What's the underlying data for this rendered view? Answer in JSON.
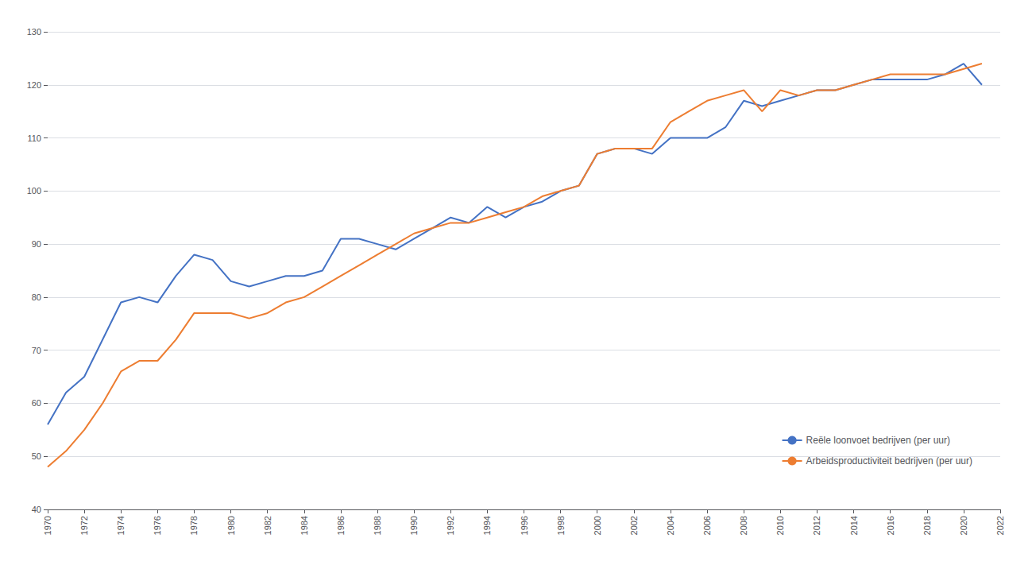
{
  "chart_data": {
    "type": "line",
    "x": [
      1970,
      1971,
      1972,
      1973,
      1974,
      1975,
      1976,
      1977,
      1978,
      1979,
      1980,
      1981,
      1982,
      1983,
      1984,
      1985,
      1986,
      1987,
      1988,
      1989,
      1990,
      1991,
      1992,
      1993,
      1994,
      1995,
      1996,
      1997,
      1998,
      1999,
      2000,
      2001,
      2002,
      2003,
      2004,
      2005,
      2006,
      2007,
      2008,
      2009,
      2010,
      2011,
      2012,
      2013,
      2014,
      2015,
      2016,
      2017,
      2018,
      2019,
      2020,
      2021
    ],
    "series": [
      {
        "name": "Reële loonvoet bedrijven (per uur)",
        "color": "#4472C4",
        "values": [
          56,
          62,
          65,
          72,
          79,
          80,
          79,
          84,
          88,
          87,
          83,
          82,
          83,
          84,
          84,
          85,
          91,
          91,
          90,
          89,
          91,
          93,
          95,
          94,
          97,
          95,
          97,
          98,
          100,
          101,
          107,
          108,
          108,
          107,
          110,
          110,
          110,
          112,
          117,
          116,
          117,
          118,
          119,
          119,
          120,
          121,
          121,
          121,
          121,
          122,
          124,
          120
        ]
      },
      {
        "name": "Arbeidsproductiviteit bedrijven (per uur)",
        "color": "#ED7D31",
        "values": [
          48,
          51,
          55,
          60,
          66,
          68,
          68,
          72,
          77,
          77,
          77,
          76,
          77,
          79,
          80,
          82,
          84,
          86,
          88,
          90,
          92,
          93,
          94,
          94,
          95,
          96,
          97,
          99,
          100,
          101,
          107,
          108,
          108,
          108,
          113,
          115,
          117,
          118,
          119,
          115,
          119,
          118,
          119,
          119,
          120,
          121,
          122,
          122,
          122,
          122,
          123,
          124
        ]
      }
    ],
    "xlim": [
      1970,
      2022
    ],
    "xticks": [
      1970,
      1972,
      1974,
      1976,
      1978,
      1980,
      1982,
      1984,
      1986,
      1988,
      1990,
      1992,
      1994,
      1996,
      1998,
      2000,
      2002,
      2004,
      2006,
      2008,
      2010,
      2012,
      2014,
      2016,
      2018,
      2020,
      2022
    ],
    "ylim": [
      40,
      130
    ],
    "yticks": [
      40,
      50,
      60,
      70,
      80,
      90,
      100,
      110,
      120,
      130
    ],
    "grid": true,
    "legend": "lower right"
  }
}
